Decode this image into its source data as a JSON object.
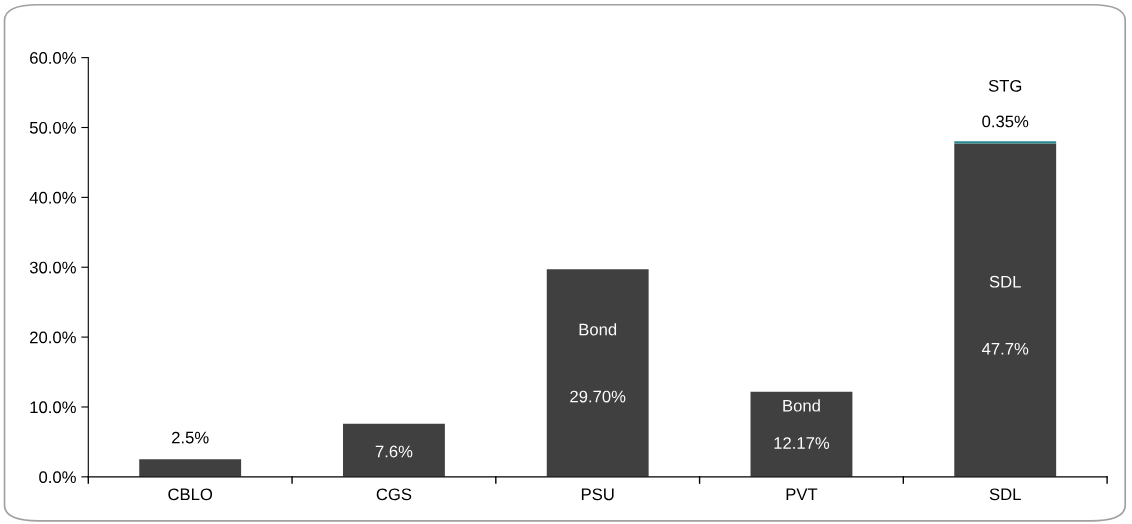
{
  "chart_data": {
    "type": "bar",
    "stacked": true,
    "categories": [
      "CBLO",
      "CGS",
      "PSU",
      "PVT",
      "SDL"
    ],
    "series": [
      {
        "color": "#404040",
        "values": [
          2.5,
          7.6,
          null,
          null,
          null
        ],
        "value_labels": [
          "2.5%",
          "7.6%",
          null,
          null,
          null
        ]
      },
      {
        "name": "Bond",
        "color": "#404040",
        "values": [
          null,
          null,
          29.7,
          12.17,
          null
        ],
        "value_labels": [
          null,
          null,
          "29.70%",
          "12.17%",
          null
        ]
      },
      {
        "name": "SDL",
        "color": "#404040",
        "values": [
          null,
          null,
          null,
          null,
          47.7
        ],
        "value_labels": [
          null,
          null,
          null,
          null,
          "47.7%"
        ]
      },
      {
        "name": "STG",
        "color": "#2b8a8f",
        "values": [
          null,
          null,
          null,
          null,
          0.35
        ],
        "value_labels": [
          null,
          null,
          null,
          null,
          "0.35%"
        ]
      }
    ],
    "ylim": [
      0,
      60
    ],
    "yticks": [
      {
        "value": 0,
        "label": "0.0%"
      },
      {
        "value": 10,
        "label": "10.0%"
      },
      {
        "value": 20,
        "label": "20.0%"
      },
      {
        "value": 30,
        "label": "30.0%"
      },
      {
        "value": 40,
        "label": "40.0%"
      },
      {
        "value": 50,
        "label": "50.0%"
      },
      {
        "value": 60,
        "label": "60.0%"
      }
    ],
    "grid": false,
    "legend": false
  }
}
